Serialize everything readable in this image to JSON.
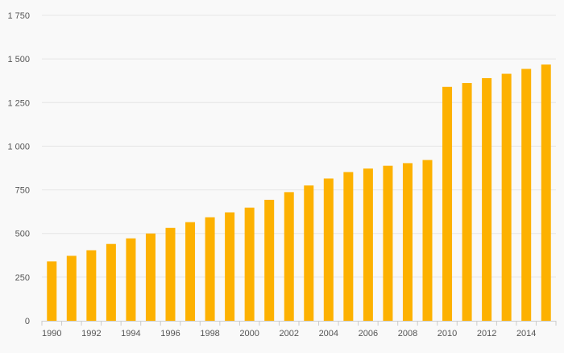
{
  "chart_data": {
    "type": "bar",
    "title": "",
    "xlabel": "",
    "ylabel": "",
    "ylim": [
      0,
      1750
    ],
    "yticks": [
      "0",
      "250",
      "500",
      "750",
      "1 000",
      "1 250",
      "1 500",
      "1 750"
    ],
    "ytick_values": [
      0,
      250,
      500,
      750,
      1000,
      1250,
      1500,
      1750
    ],
    "xtick_labels": [
      "1990",
      "1992",
      "1994",
      "1996",
      "1998",
      "2000",
      "2002",
      "2004",
      "2006",
      "2008",
      "2010",
      "2012",
      "2014"
    ],
    "categories": [
      "1990",
      "1991",
      "1992",
      "1993",
      "1994",
      "1995",
      "1996",
      "1997",
      "1998",
      "1999",
      "2000",
      "2001",
      "2002",
      "2003",
      "2004",
      "2005",
      "2006",
      "2007",
      "2008",
      "2009",
      "2010",
      "2011",
      "2012",
      "2013",
      "2014",
      "2015"
    ],
    "values": [
      340,
      372,
      404,
      440,
      472,
      500,
      532,
      565,
      593,
      621,
      648,
      693,
      737,
      775,
      815,
      852,
      872,
      888,
      903,
      921,
      1340,
      1362,
      1390,
      1415,
      1443,
      1468
    ],
    "grid": true,
    "bar_color": "#fdb100",
    "grid_color": "#e6e6e6",
    "axis_color": "#cccccc"
  }
}
